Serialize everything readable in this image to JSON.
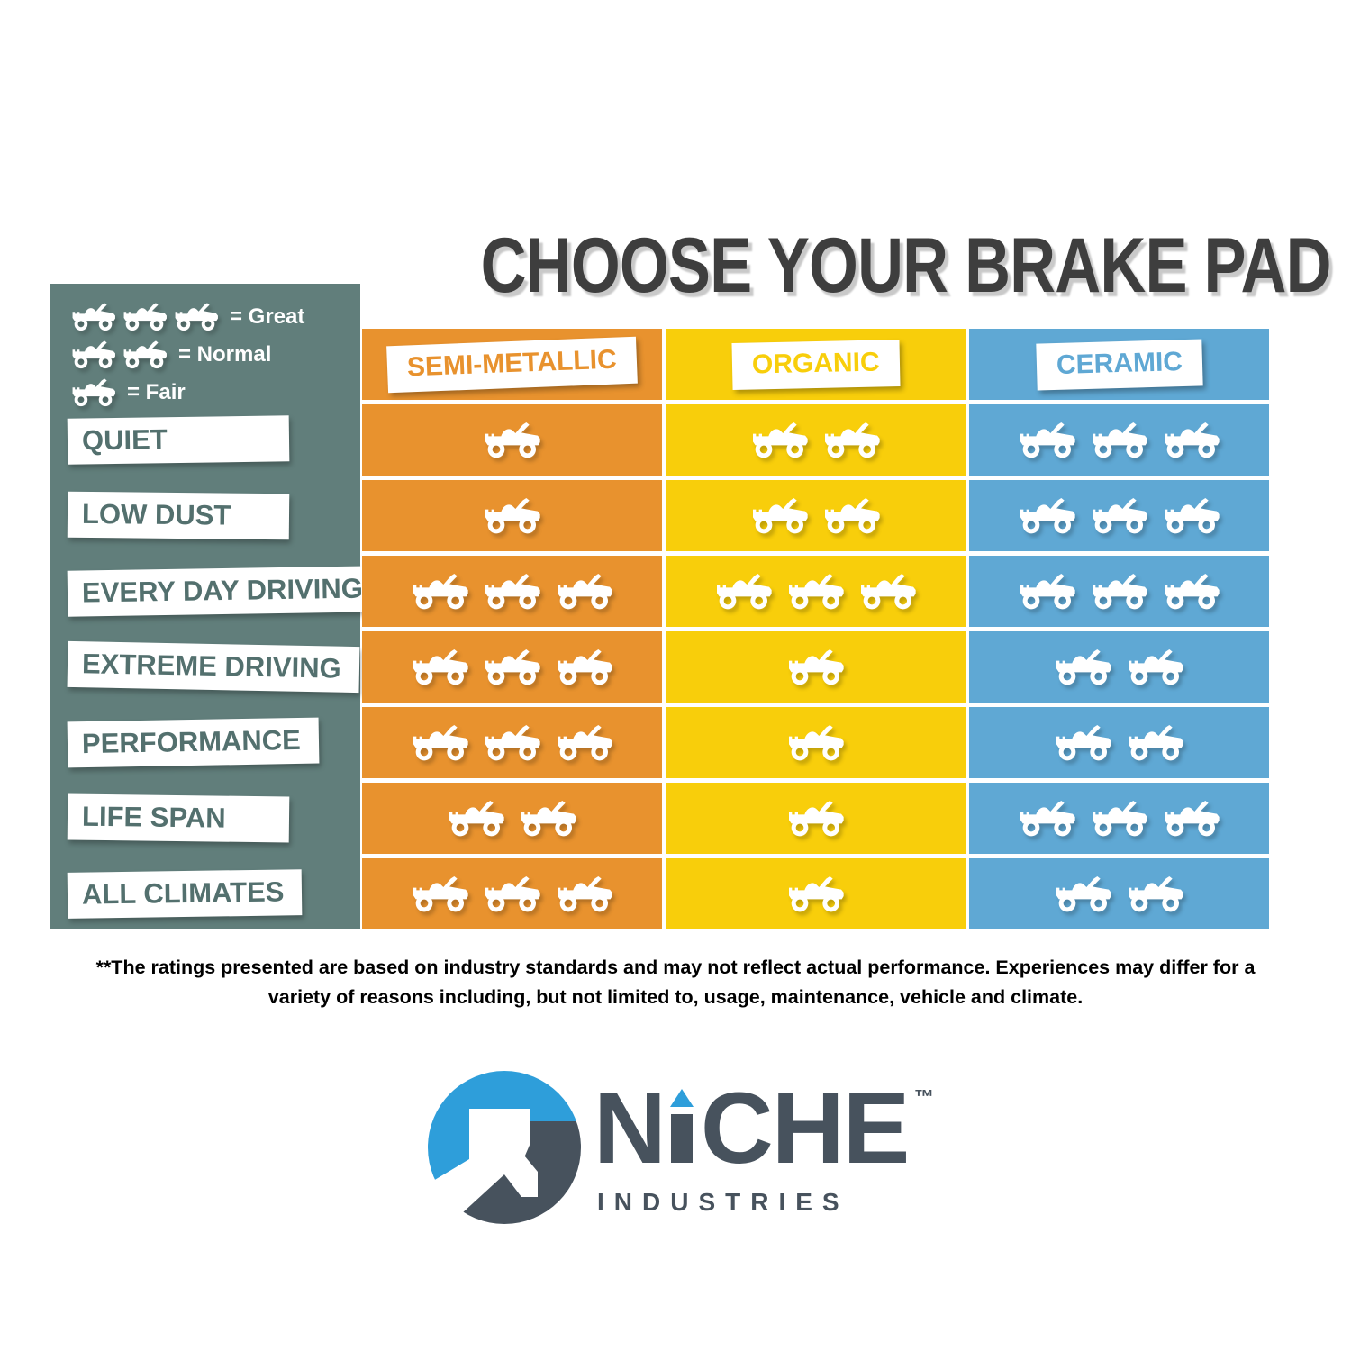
{
  "title": "CHOOSE YOUR BRAKE PAD",
  "legend": {
    "items": [
      {
        "icons": 3,
        "label": "= Great"
      },
      {
        "icons": 2,
        "label": "= Normal"
      },
      {
        "icons": 1,
        "label": "= Fair"
      }
    ]
  },
  "chart_data": {
    "type": "table",
    "title": "CHOOSE YOUR BRAKE PAD",
    "unit": "ATV icons (1=Fair, 2=Normal, 3=Great)",
    "rating_scale": {
      "3": "Great",
      "2": "Normal",
      "1": "Fair"
    },
    "categories": [
      "QUIET",
      "LOW DUST",
      "EVERY DAY DRIVING",
      "EXTREME DRIVING",
      "PERFORMANCE",
      "LIFE SPAN",
      "ALL CLIMATES"
    ],
    "series": [
      {
        "name": "SEMI-METALLIC",
        "color": "#e8922e",
        "values": [
          1,
          1,
          3,
          3,
          3,
          2,
          3
        ]
      },
      {
        "name": "ORGANIC",
        "color": "#f8ce0b",
        "values": [
          2,
          2,
          3,
          1,
          1,
          1,
          1
        ]
      },
      {
        "name": "CERAMIC",
        "color": "#5fa8d4",
        "values": [
          3,
          3,
          3,
          2,
          2,
          3,
          2
        ]
      }
    ]
  },
  "footnote": {
    "line1": "**The ratings presented are based on industry standards and may not reflect actual performance. Experiences may differ for a",
    "line2": "variety of reasons including, but not limited to, usage, maintenance, vehicle and climate."
  },
  "logo": {
    "wordmark": "NICHE",
    "wordmark_left": "N",
    "wordmark_right": "CHE",
    "trademark": "™",
    "subtitle": "INDUSTRIES"
  },
  "colors": {
    "sidebar": "#617e7b",
    "semi_metallic": "#e8922e",
    "organic": "#f8ce0b",
    "ceramic": "#5fa8d4",
    "title_text": "#3e3e3e",
    "row_label_text": "#53706e",
    "logo_dark": "#47525d",
    "logo_blue": "#2e9eda"
  }
}
